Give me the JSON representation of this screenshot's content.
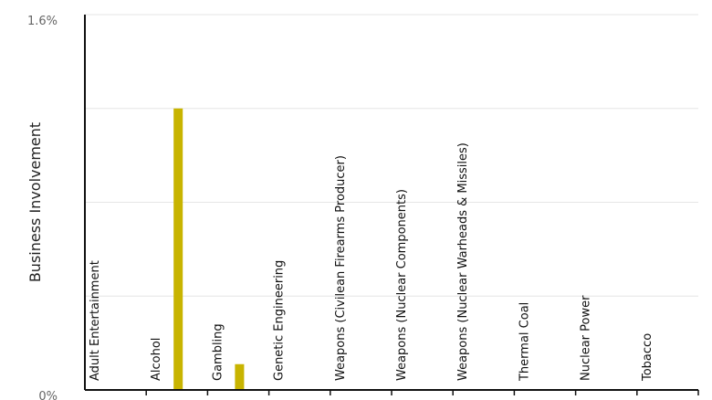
{
  "chart_data": {
    "type": "bar",
    "ylabel": "Business Involvement",
    "y_tick_labels": [
      "0%",
      "1.6%"
    ],
    "ylim": [
      0,
      1.6
    ],
    "grid": true,
    "categories": [
      "Adult Entertainment",
      "Alcohol",
      "Gambling",
      "Genetic Engineering",
      "Weapons (Civilean Firearms Producer)",
      "Weapons (Nuclear Components)",
      "Weapons (Nuclear Warheads & Missiles)",
      "Thermal Coal",
      "Nuclear Power",
      "Tobacco"
    ],
    "values": [
      0,
      1.2,
      0.11,
      0,
      0,
      0,
      0,
      0,
      0,
      0
    ],
    "bar_color": "#c8b400",
    "grid_color": "#e6e6e6",
    "axis_color": "#111111"
  }
}
